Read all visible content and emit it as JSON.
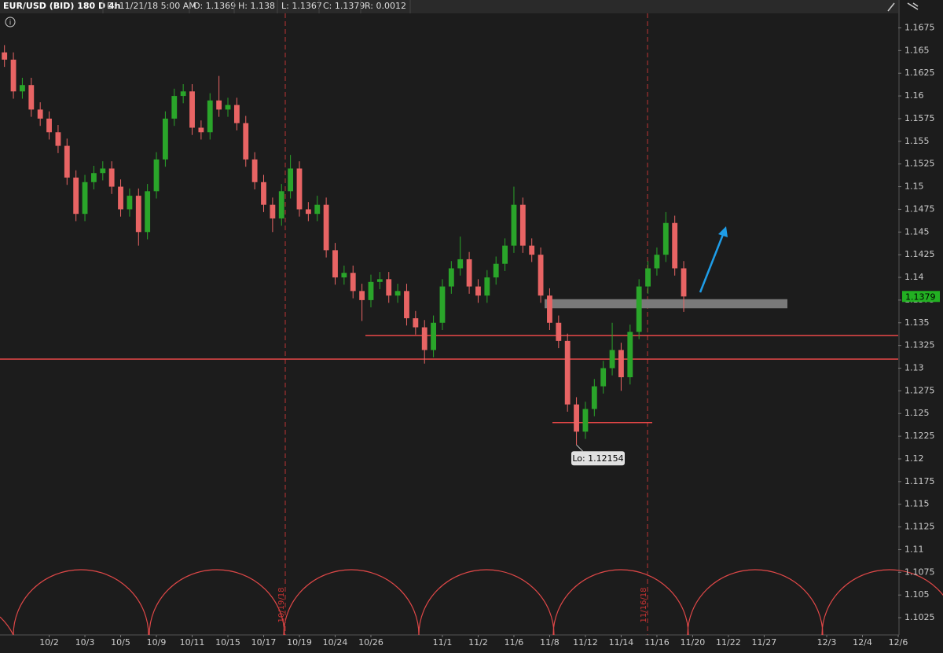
{
  "toolbar": {
    "symbol": "EUR/USD (BID) 180 D 4h",
    "date": "D: 11/21/18 5:00 AM",
    "open": "O: 1.1369",
    "high": "H: 1.138",
    "low": "L: 1.1367",
    "close": "C: 1.1379",
    "range": "R: 0.0012"
  },
  "chart_data": {
    "type": "candlestick",
    "categories": [
      null,
      null,
      null,
      null,
      null,
      "10/2",
      null,
      null,
      null,
      "10/3",
      null,
      null,
      null,
      "10/5",
      null,
      null,
      null,
      "10/9",
      null,
      null,
      null,
      "10/11",
      null,
      null,
      null,
      "10/15",
      null,
      null,
      null,
      "10/17",
      null,
      null,
      null,
      "10/19",
      null,
      null,
      null,
      "10/24",
      null,
      null,
      null,
      "10/26",
      null,
      null,
      null,
      null,
      null,
      null,
      null,
      "11/1",
      null,
      null,
      null,
      "11/2",
      null,
      null,
      null,
      "11/6",
      null,
      null,
      null,
      "11/8",
      null,
      null,
      null,
      "11/12",
      null,
      null,
      null,
      "11/14",
      null,
      null,
      null,
      "11/16",
      null,
      null,
      null,
      "11/20",
      null,
      null,
      null,
      "11/22",
      null,
      null,
      null,
      "11/27",
      null,
      null,
      null,
      null,
      null,
      null,
      "12/3",
      null,
      null,
      null,
      "12/4",
      null,
      null,
      null,
      "12/6"
    ],
    "open": [
      1.1648,
      1.164,
      1.1605,
      1.1612,
      1.1585,
      1.1575,
      1.156,
      1.1545,
      1.151,
      1.147,
      1.1505,
      1.1515,
      1.152,
      1.15,
      1.1475,
      1.149,
      1.145,
      1.1495,
      1.153,
      1.1575,
      1.16,
      1.1605,
      1.1565,
      1.156,
      1.1595,
      1.1585,
      1.159,
      1.157,
      1.153,
      1.1505,
      1.148,
      1.1465,
      1.1495,
      1.152,
      1.1475,
      1.147,
      1.148,
      1.143,
      1.14,
      1.1405,
      1.1385,
      1.1375,
      1.1395,
      1.1398,
      1.138,
      1.1385,
      1.1355,
      1.1345,
      1.132,
      1.135,
      1.139,
      1.141,
      1.142,
      1.139,
      1.138,
      1.14,
      1.1415,
      1.1435,
      1.148,
      1.1435,
      1.1425,
      1.138,
      1.135,
      1.133,
      1.126,
      1.123,
      1.1255,
      1.128,
      1.13,
      1.132,
      1.129,
      1.134,
      1.139,
      1.141,
      1.1425,
      1.146,
      1.141,
      null,
      null,
      null,
      null,
      null,
      null,
      null,
      null,
      null,
      null,
      null,
      null,
      null,
      null,
      null,
      null,
      null,
      null,
      null,
      null,
      null,
      null,
      null,
      null
    ],
    "high": [
      1.1656,
      1.1648,
      1.162,
      1.162,
      1.1593,
      1.1583,
      1.1568,
      1.1553,
      1.1518,
      1.1513,
      1.1523,
      1.1528,
      1.1528,
      1.1508,
      1.1498,
      1.1498,
      1.1503,
      1.1538,
      1.1583,
      1.1608,
      1.1613,
      1.1613,
      1.1573,
      1.1603,
      1.1622,
      1.1598,
      1.1598,
      1.1578,
      1.1538,
      1.1513,
      1.1488,
      1.1503,
      1.1535,
      1.1528,
      1.1483,
      1.149,
      1.1488,
      1.1438,
      1.1413,
      1.1413,
      1.1393,
      1.1403,
      1.1406,
      1.1406,
      1.1393,
      1.1393,
      1.1363,
      1.1353,
      1.1358,
      1.1398,
      1.1418,
      1.1445,
      1.1428,
      1.1398,
      1.1408,
      1.1423,
      1.1443,
      1.15,
      1.1488,
      1.1443,
      1.1433,
      1.1388,
      1.1358,
      1.1338,
      1.1268,
      1.1263,
      1.1288,
      1.1308,
      1.135,
      1.1328,
      1.1348,
      1.1398,
      1.1418,
      1.1433,
      1.1472,
      1.1468,
      1.1418,
      null,
      null,
      null,
      null,
      null,
      null,
      null,
      null,
      null,
      null,
      null,
      null,
      null,
      null,
      null,
      null,
      null,
      null,
      null,
      null,
      null,
      null,
      null,
      null
    ],
    "low": [
      1.1632,
      1.1597,
      1.1597,
      1.1577,
      1.1567,
      1.1552,
      1.1537,
      1.1502,
      1.1462,
      1.1462,
      1.1497,
      1.1507,
      1.1492,
      1.1467,
      1.1467,
      1.1435,
      1.1442,
      1.1487,
      1.1522,
      1.1567,
      1.1592,
      1.1557,
      1.1552,
      1.1552,
      1.1577,
      1.1577,
      1.1562,
      1.1522,
      1.1497,
      1.1472,
      1.145,
      1.1457,
      1.1487,
      1.1467,
      1.1462,
      1.1462,
      1.1422,
      1.1392,
      1.1392,
      1.1377,
      1.1352,
      1.1367,
      1.1387,
      1.1372,
      1.1372,
      1.1347,
      1.1337,
      1.1305,
      1.1312,
      1.1342,
      1.1382,
      1.1402,
      1.1382,
      1.1372,
      1.1372,
      1.1392,
      1.1407,
      1.1427,
      1.1427,
      1.1417,
      1.1372,
      1.1342,
      1.1322,
      1.1252,
      1.12154,
      1.1222,
      1.1247,
      1.1272,
      1.1292,
      1.1275,
      1.1282,
      1.1332,
      1.1382,
      1.1402,
      1.1417,
      1.1402,
      1.1362,
      null,
      null,
      null,
      null,
      null,
      null,
      null,
      null,
      null,
      null,
      null,
      null,
      null,
      null,
      null,
      null,
      null,
      null,
      null,
      null,
      null,
      null,
      null,
      null
    ],
    "close": [
      1.164,
      1.1605,
      1.1612,
      1.1585,
      1.1575,
      1.156,
      1.1545,
      1.151,
      1.147,
      1.1505,
      1.1515,
      1.152,
      1.15,
      1.1475,
      1.149,
      1.145,
      1.1495,
      1.153,
      1.1575,
      1.16,
      1.1605,
      1.1565,
      1.156,
      1.1595,
      1.1585,
      1.159,
      1.157,
      1.153,
      1.1505,
      1.148,
      1.1465,
      1.1495,
      1.152,
      1.1475,
      1.147,
      1.148,
      1.143,
      1.14,
      1.1405,
      1.1385,
      1.1375,
      1.1395,
      1.1398,
      1.138,
      1.1385,
      1.1355,
      1.1345,
      1.132,
      1.135,
      1.139,
      1.141,
      1.142,
      1.139,
      1.138,
      1.14,
      1.1415,
      1.1435,
      1.148,
      1.1435,
      1.1425,
      1.138,
      1.135,
      1.133,
      1.126,
      1.123,
      1.1255,
      1.128,
      1.13,
      1.132,
      1.129,
      1.134,
      1.139,
      1.141,
      1.1425,
      1.146,
      1.141,
      1.1379,
      null,
      null,
      null,
      null,
      null,
      null,
      null,
      null,
      null,
      null,
      null,
      null,
      null,
      null,
      null,
      null,
      null,
      null,
      null,
      null,
      null,
      null,
      null,
      null
    ],
    "up_color": "#2aa52a",
    "down_color": "#e86464",
    "ylim": [
      1.1006,
      1.1691
    ],
    "yticks": [
      1.1025,
      1.105,
      1.1075,
      1.11,
      1.1125,
      1.115,
      1.1175,
      1.12,
      1.1225,
      1.125,
      1.1275,
      1.13,
      1.1325,
      1.135,
      1.1375,
      1.14,
      1.1425,
      1.145,
      1.1475,
      1.15,
      1.1525,
      1.155,
      1.1575,
      1.16,
      1.1625,
      1.165,
      1.1675
    ],
    "last_price": 1.1379,
    "last_price_label": "1.1379",
    "levels": [
      1.1336,
      1.131,
      1.124
    ],
    "zone": [
      1.1366,
      1.1376
    ],
    "low_label": "Lo: 1.12154",
    "markers": [
      "10/19/18",
      "11/16/18"
    ]
  }
}
